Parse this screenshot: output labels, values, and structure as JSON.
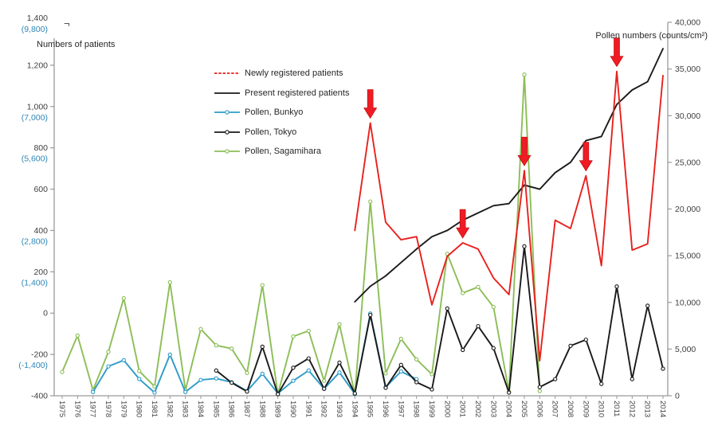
{
  "page": {
    "background": "#ffffff"
  },
  "chart_data": {
    "type": "line",
    "title": "",
    "grid": false,
    "legend_position": "upper-left-inside",
    "x": {
      "label": "",
      "categories": [
        "1975",
        "1976",
        "1977",
        "1978",
        "1979",
        "1980",
        "1981",
        "1982",
        "1983",
        "1984",
        "1985",
        "1986",
        "1987",
        "1988",
        "1989",
        "1990",
        "1991",
        "1992",
        "1993",
        "1994",
        "1995",
        "1996",
        "1997",
        "1998",
        "1999",
        "2000",
        "2001",
        "2002",
        "2003",
        "2004",
        "2005",
        "2006",
        "2007",
        "2008",
        "2009",
        "2010",
        "2011",
        "2012",
        "2013",
        "2014"
      ]
    },
    "left_axis": {
      "title": "Numbers of patients",
      "range": [
        -400,
        1400
      ],
      "break_symbol": "¬",
      "tick_values": [
        1400,
        1200,
        1000,
        800,
        600,
        400,
        200,
        0,
        -200,
        -400
      ],
      "tick_labels": [
        "1,400",
        "1,200",
        "1,000",
        "800",
        "600",
        "400",
        "200",
        "0",
        "-200",
        "-400"
      ],
      "secondary_tick_labels": [
        "(9,800)",
        null,
        "(7,000)",
        "(5,600)",
        null,
        "(2,800)",
        "(1,400)",
        null,
        "(-1,400)",
        null
      ],
      "secondary_color": "#2e86b5",
      "label_color": "#3f3f3f"
    },
    "right_axis": {
      "title": "Pollen numbers (counts/cm²)",
      "range": [
        0,
        40000
      ],
      "tick_values": [
        40000,
        35000,
        30000,
        25000,
        20000,
        15000,
        10000,
        5000,
        0
      ],
      "tick_labels": [
        "40,000",
        "35,000",
        "30,000",
        "25,000",
        "20,000",
        "15,000",
        "10,000",
        "5,000",
        "0"
      ],
      "label_color": "#3f3f3f"
    },
    "series": [
      {
        "name": "Pollen, Sagamihara",
        "axis": "right",
        "color": "#8cbe57",
        "marker": true,
        "legend_dashed": false,
        "legend_order": 4,
        "values": [
          2550,
          6450,
          600,
          4700,
          10450,
          2650,
          1000,
          12150,
          600,
          7150,
          5400,
          5050,
          2450,
          11850,
          170,
          6350,
          6950,
          1600,
          7650,
          170,
          20800,
          2400,
          6100,
          3900,
          2300,
          15200,
          11000,
          11650,
          9500,
          420,
          34400,
          500,
          null,
          null,
          null,
          null,
          null,
          null,
          null,
          null
        ]
      },
      {
        "name": "Pollen, Bunkyo",
        "axis": "right",
        "color": "#2e9bc9",
        "marker": true,
        "legend_dashed": false,
        "legend_order": 2,
        "values": [
          null,
          null,
          400,
          3150,
          3800,
          1800,
          340,
          4400,
          400,
          1700,
          1850,
          1450,
          500,
          2350,
          250,
          1600,
          2700,
          750,
          2500,
          200,
          8800,
          930,
          2600,
          1780,
          null,
          null,
          null,
          null,
          null,
          null,
          null,
          null,
          null,
          null,
          null,
          null,
          null,
          null,
          null,
          null
        ]
      },
      {
        "name": "Pollen, Tokyo",
        "axis": "right",
        "color": "#1a1a1a",
        "marker": true,
        "legend_dashed": false,
        "legend_order": 3,
        "values": [
          null,
          null,
          null,
          null,
          null,
          null,
          null,
          null,
          null,
          null,
          2700,
          1400,
          450,
          5250,
          170,
          3000,
          4000,
          750,
          3550,
          250,
          8650,
          850,
          3300,
          1450,
          680,
          9350,
          4900,
          7450,
          5100,
          340,
          16000,
          930,
          1780,
          5350,
          6000,
          1270,
          11700,
          1780,
          9650,
          2900
        ]
      },
      {
        "name": "Present registered patients",
        "axis": "left",
        "color": "#1a1a1a",
        "marker": false,
        "legend_dashed": false,
        "legend_order": 1,
        "values": [
          null,
          null,
          null,
          null,
          null,
          null,
          null,
          null,
          null,
          null,
          null,
          null,
          null,
          null,
          null,
          null,
          null,
          null,
          null,
          55,
          130,
          180,
          245,
          310,
          370,
          400,
          450,
          485,
          520,
          530,
          620,
          600,
          680,
          730,
          835,
          855,
          1010,
          1080,
          1120,
          1280
        ]
      },
      {
        "name": "Newly registered patients",
        "axis": "left",
        "color": "#e8211d",
        "marker": false,
        "legend_dashed": true,
        "legend_order": 0,
        "values": [
          null,
          null,
          null,
          null,
          null,
          null,
          null,
          null,
          null,
          null,
          null,
          null,
          null,
          null,
          null,
          null,
          null,
          null,
          null,
          400,
          920,
          440,
          355,
          370,
          40,
          275,
          340,
          310,
          170,
          90,
          690,
          -230,
          450,
          410,
          665,
          230,
          1170,
          305,
          335,
          1150
        ]
      }
    ],
    "annotations": {
      "arrows": {
        "shape": "down-arrow",
        "color": "#ee1c25",
        "years": [
          1995,
          2001,
          2005,
          2009,
          2011
        ]
      }
    }
  }
}
